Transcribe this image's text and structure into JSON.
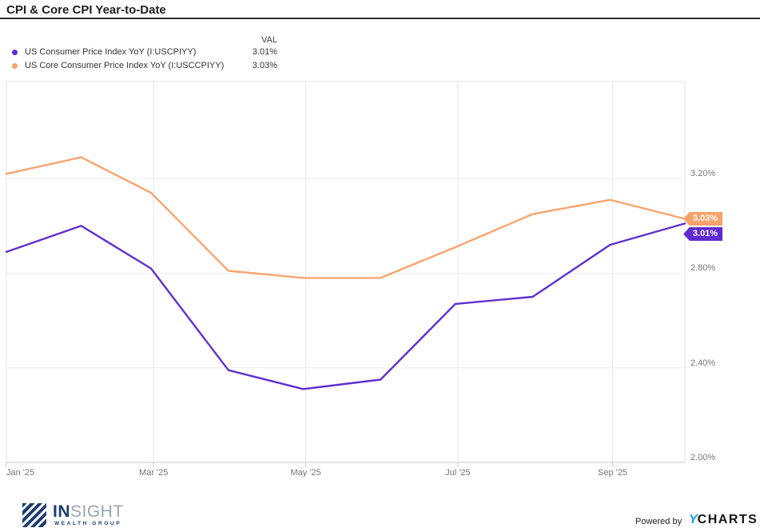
{
  "header": {
    "title": "CPI & Core CPI Year-to-Date"
  },
  "legend": {
    "val_header": "VAL",
    "items": [
      {
        "label": "US Consumer Price Index YoY (I:USCPIYY)",
        "value": "3.01%",
        "color": "#5f2bd1"
      },
      {
        "label": "US Core Consumer Price Index YoY (I:USCCPIYY)",
        "value": "3.03%",
        "color": "#f9a26b"
      }
    ]
  },
  "chart_data": {
    "type": "line",
    "title": "CPI & Core CPI Year-to-Date",
    "x_dates": [
      "2025-01-01",
      "2025-01-31",
      "2025-02-28",
      "2025-03-31",
      "2025-04-30",
      "2025-05-31",
      "2025-06-30",
      "2025-07-31",
      "2025-08-31",
      "2025-09-30"
    ],
    "series": [
      {
        "name": "US Consumer Price Index YoY (I:USCPIYY)",
        "color": "#6030d0",
        "values": [
          2.89,
          3.0,
          2.82,
          2.39,
          2.31,
          2.35,
          2.67,
          2.7,
          2.92,
          3.01
        ]
      },
      {
        "name": "US Core Consumer Price Index YoY (I:USCCPIYY)",
        "color": "#f9a571",
        "values": [
          3.22,
          3.29,
          3.14,
          2.81,
          2.78,
          2.78,
          2.91,
          3.05,
          3.11,
          3.03
        ]
      }
    ],
    "x_ticks": [
      {
        "date": "2025-01-01",
        "label": "Jan '25",
        "align": "left"
      },
      {
        "date": "2025-03-01",
        "label": "Mar '25"
      },
      {
        "date": "2025-05-01",
        "label": "May '25"
      },
      {
        "date": "2025-07-01",
        "label": "Jul '25"
      },
      {
        "date": "2025-09-01",
        "label": "Sep '25"
      }
    ],
    "y_ticks": [
      {
        "value": 3.2,
        "label": "3.20%"
      },
      {
        "value": 2.8,
        "label": "2.80%"
      },
      {
        "value": 2.4,
        "label": "2.40%"
      },
      {
        "value": 2.0,
        "label": "2.00%"
      }
    ],
    "ylim": [
      2.0,
      3.61
    ],
    "grid": true,
    "legend_position": "top-left",
    "end_labels": [
      {
        "text": "3.03%",
        "color": "#f9a26b"
      },
      {
        "text": "3.01%",
        "color": "#5f2bd1"
      }
    ]
  },
  "footer": {
    "brand": {
      "word_bold": "IN",
      "word_light": "SIGHT",
      "subtitle": "WEALTH GROUP"
    },
    "powered_by": "Powered by",
    "ycharts": {
      "y": "Y",
      "rest": "CHARTS"
    }
  }
}
